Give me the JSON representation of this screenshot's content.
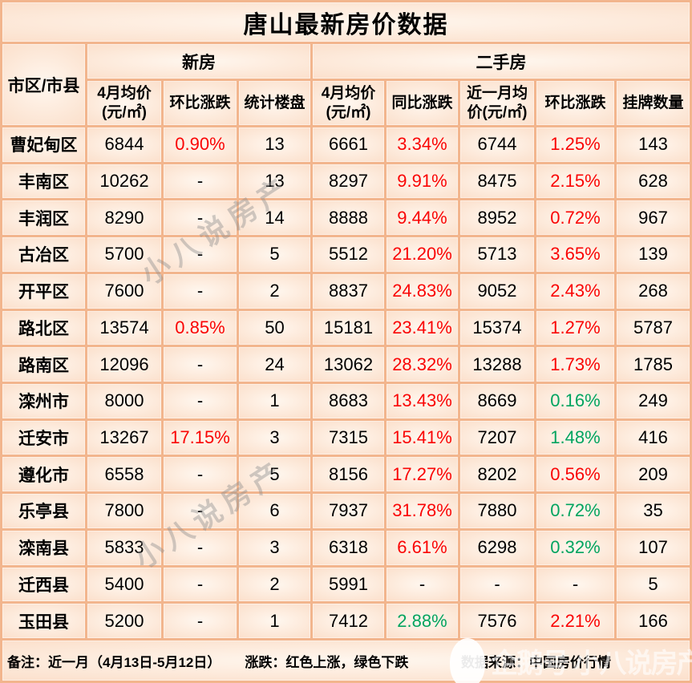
{
  "chart_data": {
    "type": "table",
    "title": "唐山最新房价数据",
    "column_groups": [
      "新房",
      "二手房"
    ],
    "columns": [
      "市区/市县",
      "4月均价\n(元/㎡)",
      "环比涨跌",
      "统计楼盘",
      "4月均价\n(元/㎡)",
      "同比涨跌",
      "近一月均\n价(元/㎡)",
      "环比涨跌",
      "挂牌数量"
    ],
    "rows": [
      [
        "曹妃甸区",
        "6844",
        "0.90%",
        "13",
        "6661",
        "3.34%",
        "6744",
        "1.25%",
        "143"
      ],
      [
        "丰南区",
        "10262",
        "-",
        "13",
        "8297",
        "9.91%",
        "8475",
        "2.15%",
        "628"
      ],
      [
        "丰润区",
        "8290",
        "-",
        "14",
        "8888",
        "9.44%",
        "8952",
        "0.72%",
        "967"
      ],
      [
        "古冶区",
        "5700",
        "-",
        "5",
        "5512",
        "21.20%",
        "5713",
        "3.65%",
        "139"
      ],
      [
        "开平区",
        "7600",
        "-",
        "2",
        "8837",
        "24.83%",
        "9052",
        "2.43%",
        "268"
      ],
      [
        "路北区",
        "13574",
        "0.85%",
        "50",
        "15181",
        "23.41%",
        "15374",
        "1.27%",
        "5787"
      ],
      [
        "路南区",
        "12096",
        "-",
        "24",
        "13062",
        "28.32%",
        "13288",
        "1.73%",
        "1785"
      ],
      [
        "滦州市",
        "8000",
        "-",
        "1",
        "8683",
        "13.43%",
        "8669",
        "0.16%",
        "249"
      ],
      [
        "迁安市",
        "13267",
        "17.15%",
        "3",
        "7315",
        "15.41%",
        "7207",
        "1.48%",
        "416"
      ],
      [
        "遵化市",
        "6558",
        "-",
        "5",
        "8156",
        "17.27%",
        "8202",
        "0.56%",
        "209"
      ],
      [
        "乐亭县",
        "7800",
        "-",
        "6",
        "7937",
        "31.78%",
        "7880",
        "0.72%",
        "35"
      ],
      [
        "滦南县",
        "5833",
        "-",
        "3",
        "6318",
        "6.61%",
        "6298",
        "0.32%",
        "107"
      ],
      [
        "迁西县",
        "5400",
        "-",
        "2",
        "5991",
        "-",
        "-",
        "-",
        "5"
      ],
      [
        "玉田县",
        "5200",
        "-",
        "1",
        "7412",
        "2.88%",
        "7576",
        "2.21%",
        "166"
      ]
    ],
    "trends": [
      [
        "",
        "",
        "up",
        "",
        "",
        "up",
        "",
        "up",
        ""
      ],
      [
        "",
        "",
        "",
        "",
        "",
        "up",
        "",
        "up",
        ""
      ],
      [
        "",
        "",
        "",
        "",
        "",
        "up",
        "",
        "up",
        ""
      ],
      [
        "",
        "",
        "",
        "",
        "",
        "up",
        "",
        "up",
        ""
      ],
      [
        "",
        "",
        "",
        "",
        "",
        "up",
        "",
        "up",
        ""
      ],
      [
        "",
        "",
        "up",
        "",
        "",
        "up",
        "",
        "up",
        ""
      ],
      [
        "",
        "",
        "",
        "",
        "",
        "up",
        "",
        "up",
        ""
      ],
      [
        "",
        "",
        "",
        "",
        "",
        "up",
        "",
        "down",
        ""
      ],
      [
        "",
        "",
        "up",
        "",
        "",
        "up",
        "",
        "down",
        ""
      ],
      [
        "",
        "",
        "",
        "",
        "",
        "up",
        "",
        "up",
        ""
      ],
      [
        "",
        "",
        "",
        "",
        "",
        "up",
        "",
        "down",
        ""
      ],
      [
        "",
        "",
        "",
        "",
        "",
        "up",
        "",
        "down",
        ""
      ],
      [
        "",
        "",
        "",
        "",
        "",
        "",
        "",
        "",
        ""
      ],
      [
        "",
        "",
        "",
        "",
        "",
        "down",
        "",
        "up",
        ""
      ]
    ],
    "layout_hints": {
      "trend_up_color_meaning": "红色上涨",
      "trend_down_color_meaning": "绿色下跌"
    }
  },
  "footer": {
    "note": "备注：近一月（4月13日-5月12日）",
    "legend": "涨跌：红色上涨，绿色下跌",
    "source": "数据来源：中国房价行情"
  },
  "watermarks": {
    "diagonal": "小八说房产",
    "footer": "企鹅号 小八说房产"
  },
  "colors": {
    "up": "#fa0505",
    "down": "#00a45f",
    "grid": "#f2b58d",
    "cell_center": "#fff7ef",
    "cell_edge": "#f9d5bd"
  }
}
